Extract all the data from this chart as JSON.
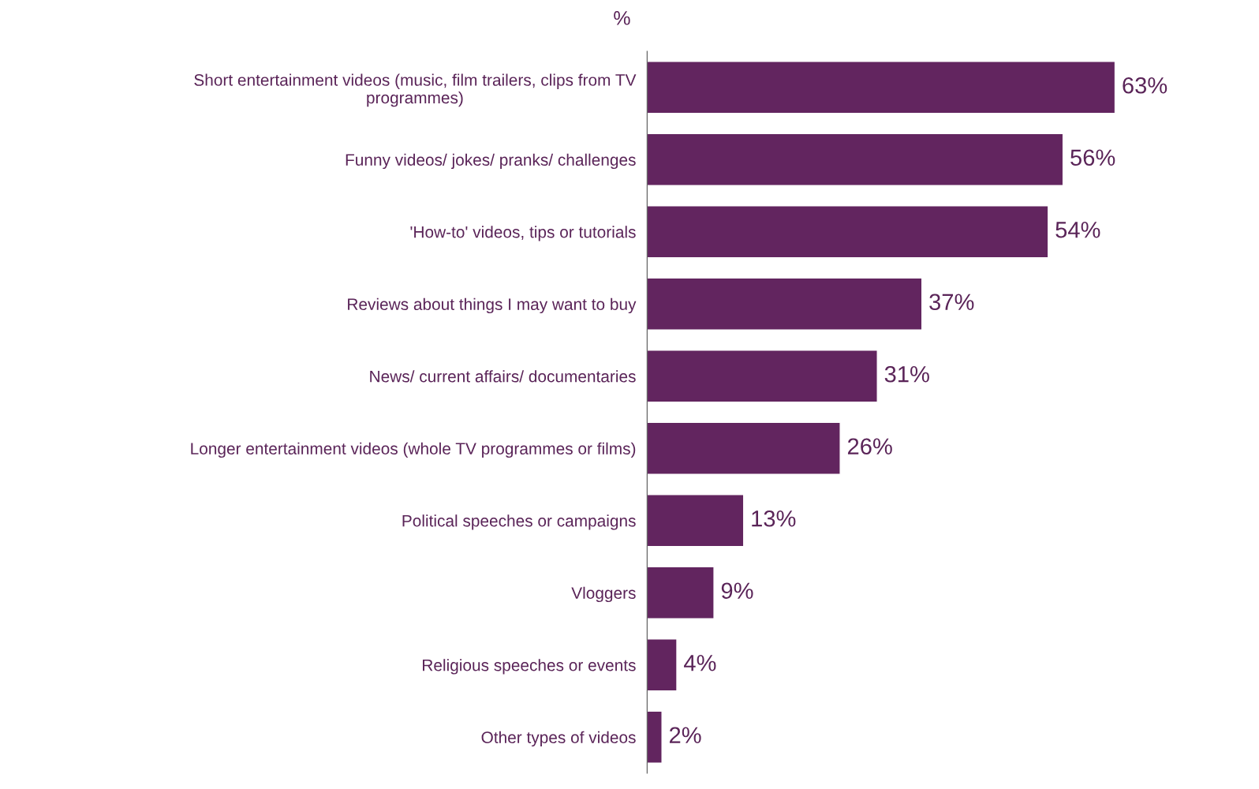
{
  "chart_data": {
    "type": "bar",
    "orientation": "horizontal",
    "annotations": [
      "%"
    ],
    "categories": [
      "Short entertainment videos (music, film trailers, clips from TV\nprogrammes)",
      "Funny videos/ jokes/ pranks/ challenges",
      "'How-to' videos, tips or tutorials",
      "Reviews about things I may want to buy",
      "News/ current affairs/ documentaries",
      "Longer entertainment videos (whole TV programmes or films)",
      "Political speeches or campaigns",
      "Vloggers",
      "Religious speeches or events",
      "Other types of videos"
    ],
    "values": [
      63,
      56,
      54,
      37,
      31,
      26,
      13,
      9,
      4,
      2
    ],
    "value_labels": [
      "63%",
      "56%",
      "54%",
      "37%",
      "31%",
      "26%",
      "13%",
      "9%",
      "4%",
      "2%"
    ],
    "color": "#62255f",
    "grid": false,
    "legend": false
  }
}
